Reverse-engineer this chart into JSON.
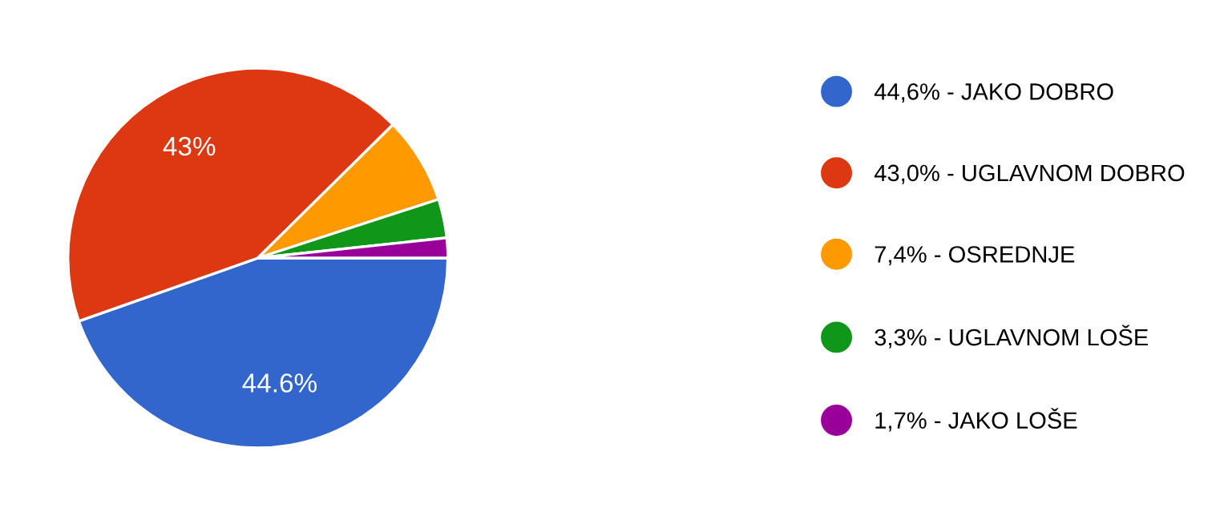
{
  "chart_data": {
    "type": "pie",
    "categories": [
      "44,6% - JAKO DOBRO",
      "43,0% - UGLAVNOM DOBRO",
      "7,4% - OSREDNJE",
      "3,3% - UGLAVNOM LOŠE",
      "1,7% - JAKO LOŠE"
    ],
    "values": [
      44.6,
      43.0,
      7.4,
      3.3,
      1.7
    ],
    "colors": [
      "#3366cc",
      "#dc3912",
      "#ff9900",
      "#109618",
      "#990099"
    ],
    "value_labels": [
      "44.6%",
      "43%",
      null,
      null,
      null
    ],
    "legend": "right"
  }
}
